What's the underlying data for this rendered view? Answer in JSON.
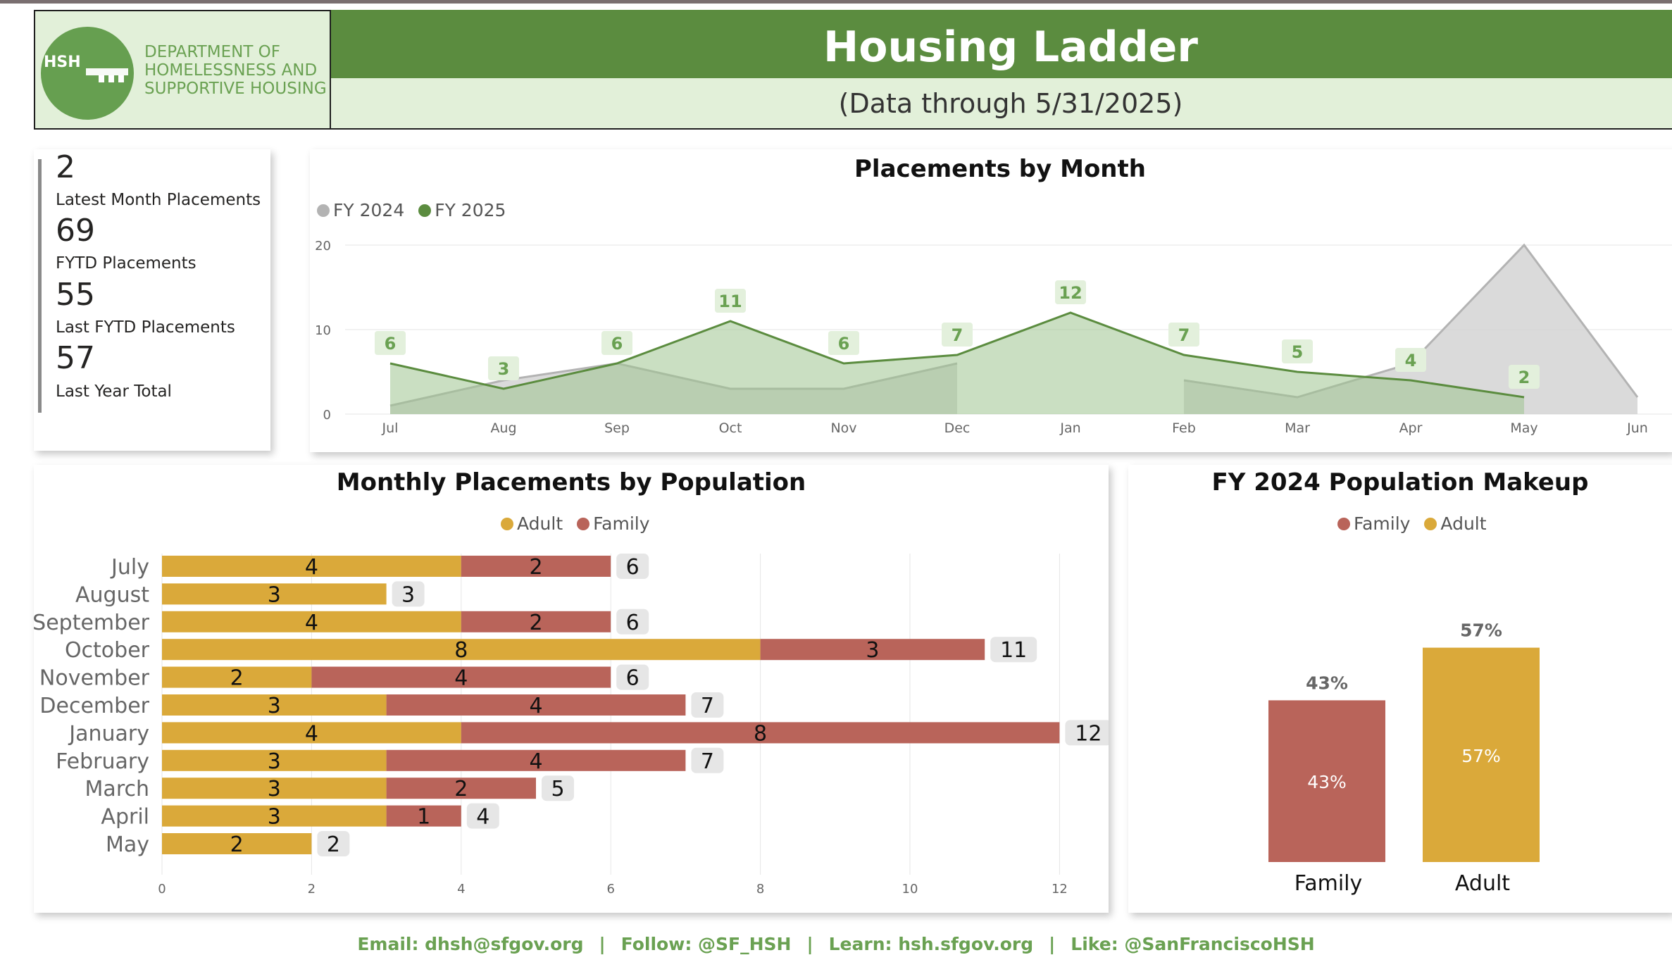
{
  "header": {
    "logo_mark": "HSH",
    "dept_name": "DEPARTMENT OF\nHOMELESSNESS AND\nSUPPORTIVE HOUSING",
    "title": "Housing Ladder",
    "subtitle": "(Data through 5/31/2025)"
  },
  "kpis": [
    {
      "value": "2",
      "label": "Latest Month Placements"
    },
    {
      "value": "69",
      "label": "FYTD Placements"
    },
    {
      "value": "55",
      "label": "Last FYTD Placements"
    },
    {
      "value": "57",
      "label": "Last Year Total"
    }
  ],
  "colors": {
    "brand_green": "#5b8c3f",
    "light_green": "#e2f0d9",
    "fy2024": "#b3b3b3",
    "fy2025": "#5b8c3f",
    "adult": "#daa93a",
    "family": "#b9645a"
  },
  "footer": {
    "email": "Email: dhsh@sfgov.org",
    "follow": "Follow: @SF_HSH",
    "learn": "Learn: hsh.sfgov.org",
    "like": "Like: @SanFranciscoHSH",
    "separator": "|"
  },
  "chart_data": [
    {
      "type": "area",
      "title": "Placements by Month",
      "xlabel": "",
      "ylabel": "",
      "categories": [
        "Jul",
        "Aug",
        "Sep",
        "Oct",
        "Nov",
        "Dec",
        "Jan",
        "Feb",
        "Mar",
        "Apr",
        "May",
        "Jun"
      ],
      "ylim": [
        0,
        20
      ],
      "yticks": [
        "0",
        "10",
        "20"
      ],
      "legend": "top-left",
      "grid": true,
      "series": [
        {
          "name": "FY 2024",
          "values": [
            1,
            4,
            6,
            3,
            3,
            6,
            null,
            4,
            2,
            6,
            20,
            2
          ]
        },
        {
          "name": "FY 2025",
          "values": [
            6,
            3,
            6,
            11,
            6,
            7,
            12,
            7,
            5,
            4,
            2,
            null
          ]
        }
      ],
      "data_labels_series": "FY 2025"
    },
    {
      "type": "bar",
      "orientation": "horizontal-stacked",
      "title": "Monthly Placements by Population",
      "xlabel": "",
      "ylabel": "",
      "categories": [
        "July",
        "August",
        "September",
        "October",
        "November",
        "December",
        "January",
        "February",
        "March",
        "April",
        "May"
      ],
      "xlim": [
        0,
        13
      ],
      "xticks": [
        "0",
        "2",
        "4",
        "6",
        "8",
        "10",
        "12"
      ],
      "legend": "top-center",
      "grid": true,
      "series": [
        {
          "name": "Adult",
          "values": [
            4,
            3,
            4,
            8,
            2,
            3,
            4,
            3,
            3,
            3,
            2
          ]
        },
        {
          "name": "Family",
          "values": [
            2,
            0,
            2,
            3,
            4,
            4,
            8,
            4,
            2,
            1,
            0
          ]
        }
      ],
      "totals": [
        6,
        3,
        6,
        11,
        6,
        7,
        12,
        7,
        5,
        4,
        2
      ]
    },
    {
      "type": "bar",
      "title": "FY 2024 Population Makeup",
      "xlabel": "",
      "ylabel": "",
      "categories": [
        "Family",
        "Adult"
      ],
      "values": [
        43,
        57
      ],
      "value_labels": [
        "43%",
        "57%"
      ],
      "ylim": [
        0,
        60
      ],
      "legend": "top-center",
      "legend_entries": [
        "Family",
        "Adult"
      ]
    }
  ]
}
